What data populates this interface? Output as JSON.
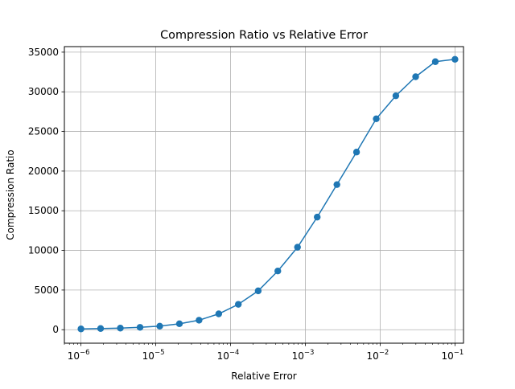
{
  "chart_data": {
    "type": "line",
    "title": "Compression Ratio vs Relative Error",
    "xlabel": "Relative Error",
    "ylabel": "Compression Ratio",
    "xscale": "log",
    "xlim": [
      6e-07,
      0.13
    ],
    "ylim": [
      -1700,
      35700
    ],
    "grid": true,
    "markers": true,
    "color": "#1f77b4",
    "xticks": [
      {
        "value": 1e-06,
        "mant": "10",
        "exp": "−6"
      },
      {
        "value": 1e-05,
        "mant": "10",
        "exp": "−5"
      },
      {
        "value": 0.0001,
        "mant": "10",
        "exp": "−4"
      },
      {
        "value": 0.001,
        "mant": "10",
        "exp": "−3"
      },
      {
        "value": 0.01,
        "mant": "10",
        "exp": "−2"
      },
      {
        "value": 0.1,
        "mant": "10",
        "exp": "−1"
      }
    ],
    "yticks": [
      0,
      5000,
      10000,
      15000,
      20000,
      25000,
      30000,
      35000
    ],
    "series": [
      {
        "x": [
          1e-06,
          1.83e-06,
          3.36e-06,
          6.16e-06,
          1.13e-05,
          2.07e-05,
          3.79e-05,
          6.95e-05,
          0.000127,
          0.000234,
          0.000428,
          0.000785,
          0.00144,
          0.00264,
          0.00483,
          0.00886,
          0.0162,
          0.0298,
          0.0546,
          0.1
        ],
        "y": [
          100,
          150,
          200,
          300,
          450,
          750,
          1200,
          2000,
          3200,
          4900,
          7400,
          10400,
          14200,
          18300,
          22400,
          26600,
          29500,
          31900,
          33800,
          34100
        ]
      }
    ]
  }
}
